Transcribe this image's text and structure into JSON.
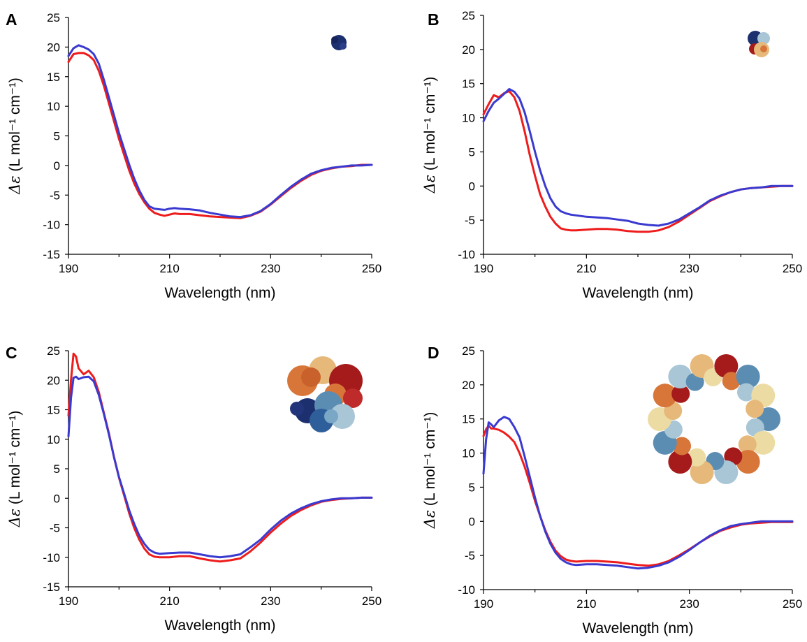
{
  "colors": {
    "red": "#ee1c1c",
    "blue": "#3a3ad0",
    "navy": "#1c2f6e",
    "steel_blue": "#5b8db3",
    "light_blue": "#a8c6d6",
    "orange": "#d8763a",
    "tan": "#e6b97a",
    "cream": "#ecdca4",
    "dark_red": "#a51b1b"
  },
  "chart_data": [
    {
      "panel": "A",
      "type": "line",
      "xlabel": "Wavelength (nm)",
      "ylabel_symbol": "Δε",
      "ylabel_unit": "(L mol⁻¹ cm⁻¹)",
      "xlim": [
        190,
        250
      ],
      "ylim": [
        -15,
        25
      ],
      "xticks": [
        190,
        210,
        230,
        250
      ],
      "yticks": [
        -15,
        -10,
        -5,
        0,
        5,
        10,
        15,
        20,
        25
      ],
      "grid": false,
      "structure_icon": "small-globular-protein-icon",
      "series": [
        {
          "color": "#ee1c1c",
          "x": [
            190,
            191,
            192,
            193,
            194,
            195,
            196,
            197,
            198,
            199,
            200,
            201,
            202,
            203,
            204,
            205,
            206,
            207,
            208,
            209,
            210,
            211,
            212,
            214,
            216,
            218,
            220,
            222,
            224,
            226,
            228,
            230,
            232,
            234,
            236,
            238,
            240,
            242,
            244,
            246,
            248,
            250
          ],
          "y": [
            17.5,
            18.8,
            19.0,
            19.0,
            18.6,
            17.8,
            16.0,
            13.5,
            10.5,
            7.5,
            4.5,
            1.8,
            -0.8,
            -3.0,
            -4.8,
            -6.2,
            -7.3,
            -8.0,
            -8.3,
            -8.5,
            -8.3,
            -8.1,
            -8.2,
            -8.2,
            -8.4,
            -8.6,
            -8.7,
            -8.8,
            -8.9,
            -8.5,
            -7.8,
            -6.6,
            -5.2,
            -3.8,
            -2.6,
            -1.6,
            -0.9,
            -0.5,
            -0.2,
            -0.1,
            0.1,
            0.1
          ]
        },
        {
          "color": "#3a3ad0",
          "x": [
            190,
            191,
            192,
            193,
            194,
            195,
            196,
            197,
            198,
            199,
            200,
            201,
            202,
            203,
            204,
            205,
            206,
            207,
            208,
            209,
            210,
            211,
            212,
            214,
            216,
            218,
            220,
            222,
            224,
            226,
            228,
            230,
            232,
            234,
            236,
            238,
            240,
            242,
            244,
            246,
            248,
            250
          ],
          "y": [
            18.5,
            19.8,
            20.3,
            20.0,
            19.6,
            18.8,
            17.2,
            14.5,
            11.5,
            8.5,
            5.5,
            2.8,
            0.2,
            -2.2,
            -4.2,
            -5.8,
            -6.9,
            -7.3,
            -7.4,
            -7.5,
            -7.3,
            -7.2,
            -7.3,
            -7.4,
            -7.6,
            -8.0,
            -8.3,
            -8.6,
            -8.7,
            -8.4,
            -7.7,
            -6.5,
            -5.0,
            -3.6,
            -2.4,
            -1.4,
            -0.8,
            -0.4,
            -0.2,
            0.0,
            0.0,
            0.1
          ]
        }
      ]
    },
    {
      "panel": "B",
      "type": "line",
      "xlabel": "Wavelength (nm)",
      "ylabel_symbol": "Δε",
      "ylabel_unit": "(L mol⁻¹ cm⁻¹)",
      "xlim": [
        190,
        250
      ],
      "ylim": [
        -10,
        25
      ],
      "xticks": [
        190,
        210,
        230,
        250
      ],
      "yticks": [
        -10,
        -5,
        0,
        5,
        10,
        15,
        20,
        25
      ],
      "grid": false,
      "structure_icon": "tetrameric-protein-icon",
      "series": [
        {
          "color": "#ee1c1c",
          "x": [
            190,
            191,
            192,
            193,
            194,
            195,
            196,
            197,
            198,
            199,
            200,
            201,
            202,
            203,
            204,
            205,
            206,
            207,
            208,
            210,
            212,
            214,
            216,
            218,
            220,
            222,
            224,
            226,
            228,
            230,
            232,
            234,
            236,
            238,
            240,
            242,
            244,
            246,
            248,
            250
          ],
          "y": [
            10.5,
            12.0,
            13.3,
            13.0,
            13.6,
            13.9,
            13.0,
            11.0,
            8.0,
            4.5,
            1.5,
            -1.2,
            -3.0,
            -4.5,
            -5.5,
            -6.2,
            -6.4,
            -6.5,
            -6.5,
            -6.4,
            -6.3,
            -6.3,
            -6.4,
            -6.6,
            -6.7,
            -6.7,
            -6.5,
            -6.0,
            -5.2,
            -4.2,
            -3.2,
            -2.2,
            -1.5,
            -0.9,
            -0.5,
            -0.3,
            -0.2,
            -0.1,
            0.0,
            0.0
          ]
        },
        {
          "color": "#3a3ad0",
          "x": [
            190,
            191,
            192,
            193,
            194,
            195,
            196,
            197,
            198,
            199,
            200,
            201,
            202,
            203,
            204,
            205,
            206,
            207,
            208,
            210,
            212,
            214,
            216,
            218,
            220,
            222,
            224,
            226,
            228,
            230,
            232,
            234,
            236,
            238,
            240,
            242,
            244,
            246,
            248,
            250
          ],
          "y": [
            9.5,
            11.0,
            12.2,
            12.8,
            13.5,
            14.2,
            13.8,
            12.8,
            10.8,
            8.0,
            5.0,
            2.3,
            0.0,
            -1.8,
            -3.0,
            -3.7,
            -4.0,
            -4.2,
            -4.3,
            -4.5,
            -4.6,
            -4.7,
            -4.9,
            -5.1,
            -5.5,
            -5.7,
            -5.8,
            -5.5,
            -4.9,
            -4.0,
            -3.1,
            -2.1,
            -1.4,
            -0.9,
            -0.5,
            -0.3,
            -0.2,
            0.0,
            0.0,
            0.0
          ]
        }
      ]
    },
    {
      "panel": "C",
      "type": "line",
      "xlabel": "Wavelength (nm)",
      "ylabel_symbol": "Δε",
      "ylabel_unit": "(L mol⁻¹ cm⁻¹)",
      "xlim": [
        190,
        250
      ],
      "ylim": [
        -15,
        25
      ],
      "xticks": [
        190,
        210,
        230,
        250
      ],
      "yticks": [
        -15,
        -10,
        -5,
        0,
        5,
        10,
        15,
        20,
        25
      ],
      "grid": false,
      "structure_icon": "large-protein-complex-icon",
      "series": [
        {
          "color": "#ee1c1c",
          "x": [
            190,
            190.5,
            191,
            191.5,
            192,
            193,
            194,
            195,
            196,
            197,
            198,
            199,
            200,
            201,
            202,
            203,
            204,
            205,
            206,
            207,
            208,
            210,
            212,
            214,
            216,
            218,
            220,
            222,
            224,
            226,
            228,
            230,
            232,
            234,
            236,
            238,
            240,
            242,
            244,
            246,
            248,
            250
          ],
          "y": [
            14.0,
            20.0,
            24.5,
            24.0,
            22.0,
            21.0,
            21.6,
            20.5,
            18.0,
            14.5,
            11.0,
            7.0,
            3.5,
            0.5,
            -2.5,
            -5.0,
            -7.0,
            -8.5,
            -9.5,
            -9.9,
            -10.0,
            -10.0,
            -9.8,
            -9.8,
            -10.2,
            -10.5,
            -10.7,
            -10.5,
            -10.2,
            -9.0,
            -7.5,
            -5.8,
            -4.3,
            -3.0,
            -2.0,
            -1.2,
            -0.6,
            -0.3,
            -0.1,
            0.0,
            0.1,
            0.1
          ]
        },
        {
          "color": "#3a3ad0",
          "x": [
            190,
            190.5,
            191,
            191.5,
            192,
            193,
            194,
            195,
            196,
            197,
            198,
            199,
            200,
            201,
            202,
            203,
            204,
            205,
            206,
            207,
            208,
            210,
            212,
            214,
            216,
            218,
            220,
            222,
            224,
            226,
            228,
            230,
            232,
            234,
            236,
            238,
            240,
            242,
            244,
            246,
            248,
            250
          ],
          "y": [
            10.5,
            17.0,
            20.4,
            20.6,
            20.2,
            20.5,
            20.6,
            19.8,
            17.5,
            14.3,
            10.8,
            7.0,
            3.6,
            0.8,
            -2.0,
            -4.3,
            -6.3,
            -7.7,
            -8.7,
            -9.2,
            -9.4,
            -9.3,
            -9.2,
            -9.2,
            -9.5,
            -9.8,
            -10.0,
            -9.8,
            -9.5,
            -8.3,
            -7.0,
            -5.3,
            -3.8,
            -2.6,
            -1.7,
            -1.0,
            -0.5,
            -0.2,
            0.0,
            0.0,
            0.1,
            0.1
          ]
        }
      ]
    },
    {
      "panel": "D",
      "type": "line",
      "xlabel": "Wavelength (nm)",
      "ylabel_symbol": "Δε",
      "ylabel_unit": "(L mol⁻¹ cm⁻¹)",
      "xlim": [
        190,
        250
      ],
      "ylim": [
        -10,
        25
      ],
      "xticks": [
        190,
        210,
        230,
        250
      ],
      "yticks": [
        -10,
        -5,
        0,
        5,
        10,
        15,
        20,
        25
      ],
      "grid": false,
      "structure_icon": "ring-shaped-protein-assembly-icon",
      "series": [
        {
          "color": "#ee1c1c",
          "x": [
            190,
            190.5,
            191,
            191.5,
            192,
            193,
            194,
            195,
            196,
            197,
            198,
            199,
            200,
            201,
            202,
            203,
            204,
            205,
            206,
            207,
            208,
            210,
            212,
            214,
            216,
            218,
            220,
            222,
            224,
            226,
            228,
            230,
            232,
            234,
            236,
            238,
            240,
            242,
            244,
            246,
            248,
            250
          ],
          "y": [
            12.5,
            13.5,
            14.0,
            13.6,
            13.6,
            13.4,
            13.0,
            12.4,
            11.6,
            10.0,
            8.0,
            5.6,
            3.0,
            0.8,
            -1.3,
            -3.0,
            -4.3,
            -5.1,
            -5.6,
            -5.8,
            -5.9,
            -5.8,
            -5.8,
            -5.9,
            -6.0,
            -6.2,
            -6.4,
            -6.5,
            -6.3,
            -5.8,
            -5.0,
            -4.1,
            -3.1,
            -2.2,
            -1.4,
            -0.9,
            -0.5,
            -0.3,
            -0.2,
            -0.1,
            -0.1,
            -0.1
          ]
        },
        {
          "color": "#3a3ad0",
          "x": [
            190,
            190.5,
            191,
            191.5,
            192,
            193,
            194,
            195,
            196,
            197,
            198,
            199,
            200,
            201,
            202,
            203,
            204,
            205,
            206,
            207,
            208,
            210,
            212,
            214,
            216,
            218,
            220,
            222,
            224,
            226,
            228,
            230,
            232,
            234,
            236,
            238,
            240,
            242,
            244,
            246,
            248,
            250
          ],
          "y": [
            7.0,
            12.0,
            14.5,
            14.2,
            13.8,
            14.8,
            15.3,
            15.0,
            13.8,
            12.3,
            9.5,
            6.5,
            3.5,
            0.8,
            -1.5,
            -3.3,
            -4.6,
            -5.5,
            -6.0,
            -6.3,
            -6.4,
            -6.3,
            -6.3,
            -6.4,
            -6.5,
            -6.7,
            -6.9,
            -6.8,
            -6.5,
            -6.0,
            -5.2,
            -4.2,
            -3.1,
            -2.1,
            -1.3,
            -0.7,
            -0.4,
            -0.2,
            0.0,
            0.0,
            0.0,
            0.0
          ]
        }
      ]
    }
  ]
}
